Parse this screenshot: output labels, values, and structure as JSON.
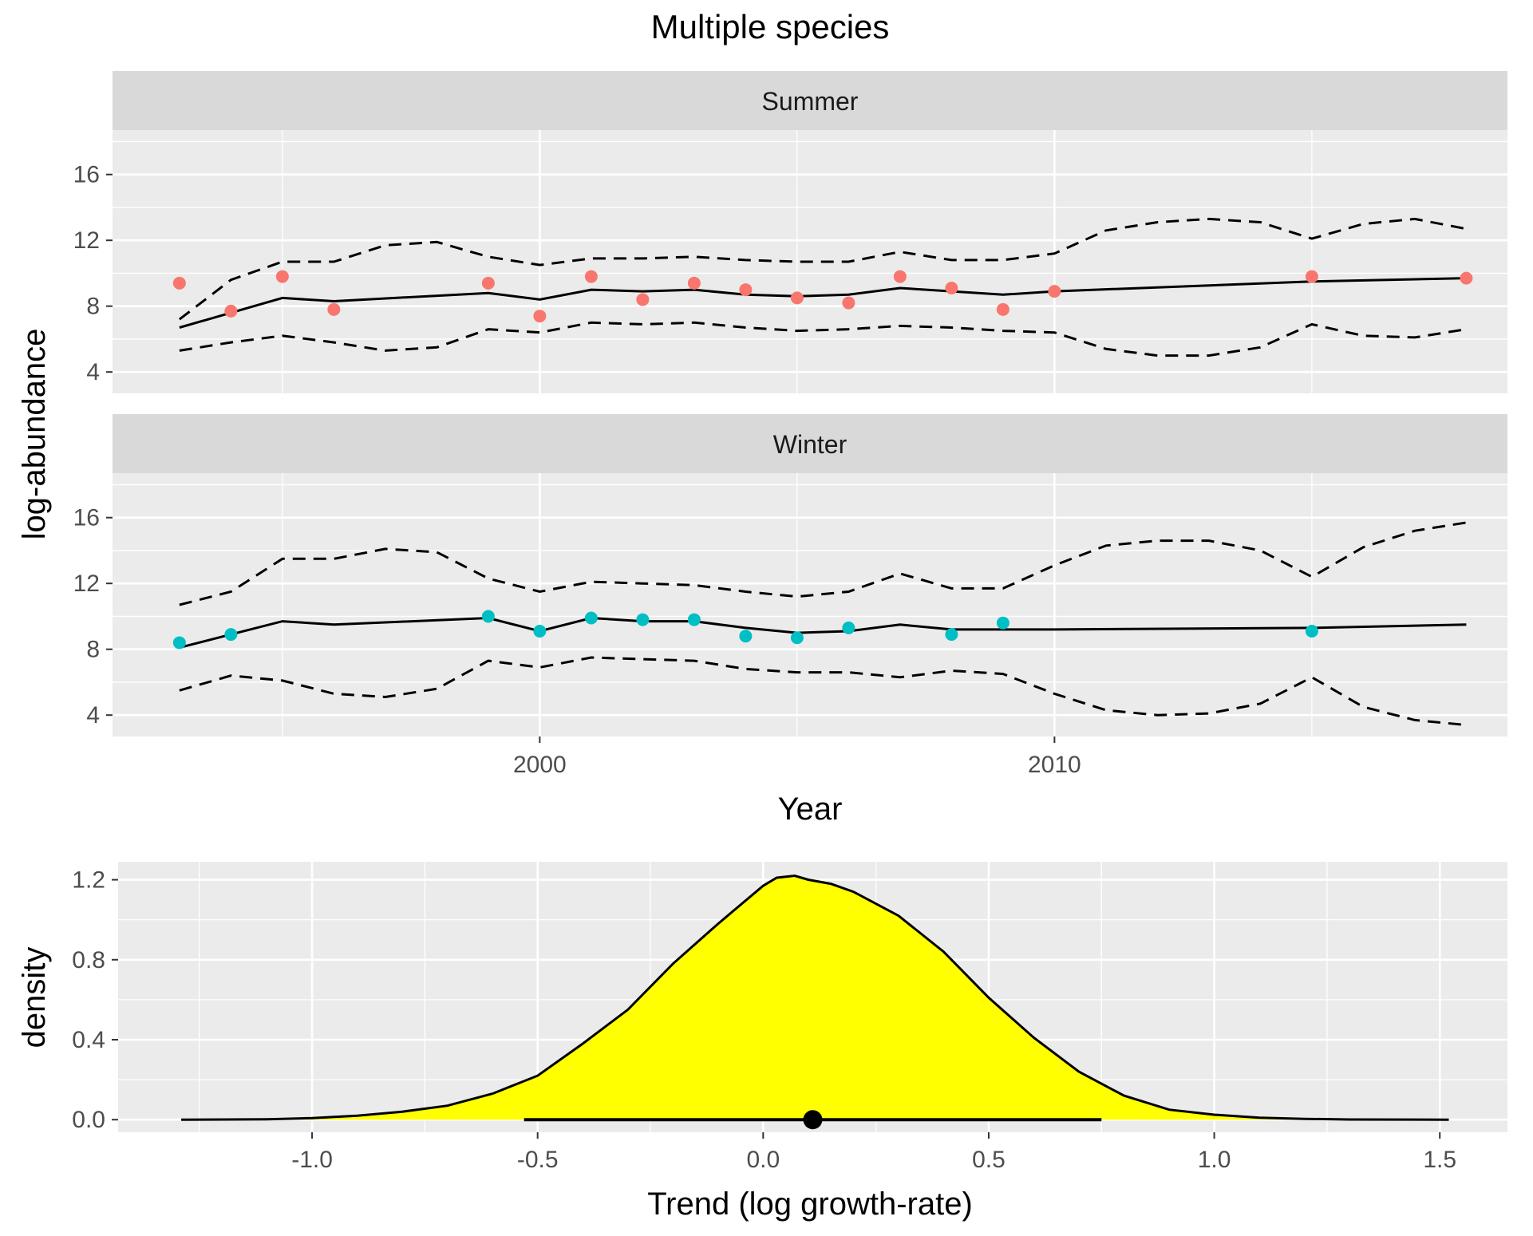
{
  "figure_title": "Multiple species",
  "colors": {
    "panel_bg": "#EBEBEB",
    "strip_bg": "#D9D9D9",
    "grid": "#FFFFFF",
    "summer_points": "#F8766D",
    "winter_points": "#00BFC4",
    "density_fill": "#FFFF00",
    "line": "#000000"
  },
  "chart_data": [
    {
      "type": "line",
      "facet": "Summer",
      "xlabel": "Year",
      "ylabel": "log-abundance",
      "xlim": [
        1991.7,
        2018.8
      ],
      "ylim": [
        2.7,
        18.7
      ],
      "xticks": [
        2000,
        2010
      ],
      "yticks": [
        4,
        8,
        12,
        16
      ],
      "grid": true,
      "series": [
        {
          "style": "solid",
          "x": [
            1993,
            1995,
            1996,
            1999,
            2000,
            2001,
            2002,
            2003,
            2004,
            2005,
            2006,
            2007,
            2008,
            2009,
            2010,
            2015,
            2018
          ],
          "y": [
            6.7,
            8.5,
            8.3,
            8.8,
            8.4,
            9.0,
            8.9,
            9.0,
            8.7,
            8.6,
            8.7,
            9.1,
            8.9,
            8.7,
            8.9,
            9.5,
            9.7
          ]
        },
        {
          "style": "dashed",
          "x": [
            1993,
            1994,
            1995,
            1996,
            1997,
            1998,
            1999,
            2000,
            2001,
            2002,
            2003,
            2004,
            2005,
            2006,
            2007,
            2008,
            2009,
            2010,
            2011,
            2012,
            2013,
            2014,
            2015,
            2016,
            2017,
            2018
          ],
          "y": [
            7.2,
            9.6,
            10.7,
            10.7,
            11.7,
            11.9,
            11.0,
            10.5,
            10.9,
            10.9,
            11.0,
            10.8,
            10.7,
            10.7,
            11.3,
            10.8,
            10.8,
            11.2,
            12.6,
            13.1,
            13.3,
            13.1,
            12.1,
            13.0,
            13.3,
            12.7
          ]
        },
        {
          "style": "dashed",
          "x": [
            1993,
            1994,
            1995,
            1996,
            1997,
            1998,
            1999,
            2000,
            2001,
            2002,
            2003,
            2004,
            2005,
            2006,
            2007,
            2008,
            2009,
            2010,
            2011,
            2012,
            2013,
            2014,
            2015,
            2016,
            2017,
            2018
          ],
          "y": [
            5.3,
            5.8,
            6.2,
            5.8,
            5.3,
            5.5,
            6.6,
            6.4,
            7.0,
            6.9,
            7.0,
            6.7,
            6.5,
            6.6,
            6.8,
            6.7,
            6.5,
            6.4,
            5.4,
            5.0,
            5.0,
            5.5,
            6.9,
            6.2,
            6.1,
            6.6
          ]
        }
      ],
      "points": {
        "x": [
          1993,
          1994,
          1995,
          1996,
          1999,
          2000,
          2001,
          2002,
          2003,
          2004,
          2005,
          2006,
          2007,
          2008,
          2009,
          2010,
          2015,
          2018
        ],
        "y": [
          9.4,
          7.7,
          9.8,
          7.8,
          9.4,
          7.4,
          9.8,
          8.4,
          9.4,
          9.0,
          8.5,
          8.2,
          9.8,
          9.1,
          7.8,
          8.9,
          9.8,
          9.7
        ]
      }
    },
    {
      "type": "line",
      "facet": "Winter",
      "xlabel": "Year",
      "ylabel": "log-abundance",
      "xlim": [
        1991.7,
        2018.8
      ],
      "ylim": [
        2.7,
        18.7
      ],
      "xticks": [
        2000,
        2010
      ],
      "yticks": [
        4,
        8,
        12,
        16
      ],
      "grid": true,
      "series": [
        {
          "style": "solid",
          "x": [
            1993,
            1994,
            1995,
            1996,
            1999,
            2000,
            2001,
            2002,
            2003,
            2004,
            2005,
            2006,
            2007,
            2008,
            2009,
            2010,
            2015,
            2018
          ],
          "y": [
            8.1,
            8.9,
            9.7,
            9.5,
            9.9,
            9.1,
            9.9,
            9.7,
            9.7,
            9.3,
            9.0,
            9.1,
            9.5,
            9.2,
            9.2,
            9.2,
            9.3,
            9.5
          ]
        },
        {
          "style": "dashed",
          "x": [
            1993,
            1994,
            1995,
            1996,
            1997,
            1998,
            1999,
            2000,
            2001,
            2002,
            2003,
            2004,
            2005,
            2006,
            2007,
            2008,
            2009,
            2010,
            2011,
            2012,
            2013,
            2014,
            2015,
            2016,
            2017,
            2018
          ],
          "y": [
            10.7,
            11.5,
            13.5,
            13.5,
            14.1,
            13.9,
            12.3,
            11.5,
            12.1,
            12.0,
            11.9,
            11.5,
            11.2,
            11.5,
            12.6,
            11.7,
            11.7,
            13.1,
            14.3,
            14.6,
            14.6,
            14.0,
            12.4,
            14.2,
            15.2,
            15.7
          ]
        },
        {
          "style": "dashed",
          "x": [
            1993,
            1994,
            1995,
            1996,
            1997,
            1998,
            1999,
            2000,
            2001,
            2002,
            2003,
            2004,
            2005,
            2006,
            2007,
            2008,
            2009,
            2010,
            2011,
            2012,
            2013,
            2014,
            2015,
            2016,
            2017,
            2018
          ],
          "y": [
            5.5,
            6.4,
            6.1,
            5.3,
            5.1,
            5.6,
            7.3,
            6.9,
            7.5,
            7.4,
            7.3,
            6.8,
            6.6,
            6.6,
            6.3,
            6.7,
            6.5,
            5.3,
            4.3,
            4.0,
            4.1,
            4.7,
            6.3,
            4.5,
            3.7,
            3.4
          ]
        }
      ],
      "points": {
        "x": [
          1993,
          1994,
          1999,
          2000,
          2001,
          2002,
          2003,
          2004,
          2005,
          2006,
          2008,
          2009,
          2015
        ],
        "y": [
          8.4,
          8.9,
          10.0,
          9.1,
          9.9,
          9.8,
          9.8,
          8.8,
          8.7,
          9.3,
          8.9,
          9.6,
          9.1
        ]
      }
    },
    {
      "type": "area",
      "title": "",
      "xlabel": "Trend (log growth-rate)",
      "ylabel": "density",
      "xlim": [
        -1.43,
        1.65
      ],
      "ylim": [
        -0.063,
        1.29
      ],
      "xticks": [
        -1.0,
        -0.5,
        0.0,
        0.5,
        1.0,
        1.5
      ],
      "xtick_labels": [
        "-1.0",
        "-0.5",
        "0.0",
        "0.5",
        "1.0",
        "1.5"
      ],
      "yticks": [
        0.0,
        0.4,
        0.8,
        1.2
      ],
      "ytick_labels": [
        "0.0",
        "0.4",
        "0.8",
        "1.2"
      ],
      "grid": true,
      "x": [
        -1.29,
        -1.1,
        -1.0,
        -0.9,
        -0.8,
        -0.7,
        -0.6,
        -0.5,
        -0.4,
        -0.3,
        -0.2,
        -0.1,
        0.0,
        0.03,
        0.07,
        0.1,
        0.15,
        0.2,
        0.3,
        0.4,
        0.5,
        0.6,
        0.7,
        0.8,
        0.9,
        1.0,
        1.1,
        1.2,
        1.3,
        1.52
      ],
      "y": [
        0.0,
        0.002,
        0.008,
        0.02,
        0.04,
        0.07,
        0.13,
        0.22,
        0.38,
        0.55,
        0.78,
        0.98,
        1.17,
        1.21,
        1.22,
        1.2,
        1.18,
        1.14,
        1.02,
        0.84,
        0.61,
        0.41,
        0.24,
        0.12,
        0.05,
        0.025,
        0.01,
        0.004,
        0.001,
        0.0
      ],
      "interval": [
        -0.53,
        0.75
      ],
      "point_estimate": 0.11
    }
  ]
}
